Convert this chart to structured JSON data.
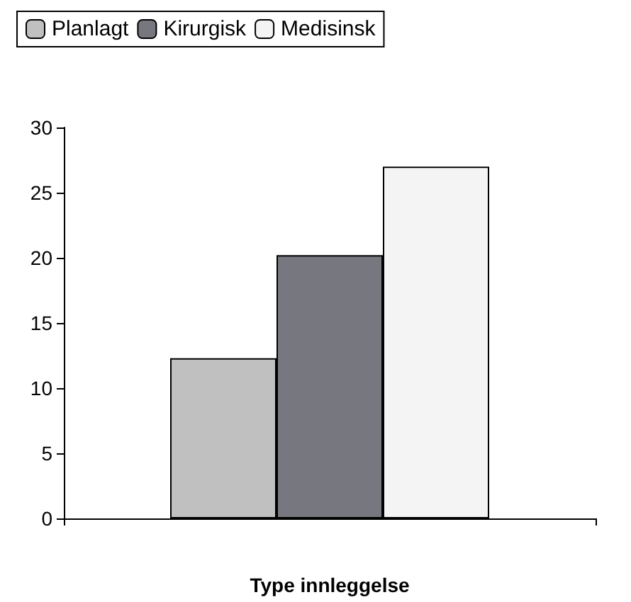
{
  "chart_data": {
    "type": "bar",
    "xlabel": "Type innleggelse",
    "categories": [
      null
    ],
    "series": [
      {
        "name": "Planlagt",
        "color": "#c0c0c0",
        "values": [
          12.3
        ]
      },
      {
        "name": "Kirurgisk",
        "color": "#77777f",
        "values": [
          20.2
        ]
      },
      {
        "name": "Medisinsk",
        "color": "#f4f4f4",
        "values": [
          27
        ]
      }
    ],
    "ylim": [
      0,
      30
    ],
    "yticks": [
      0,
      5,
      10,
      15,
      20,
      25,
      30
    ],
    "grid": false,
    "legend": "top left"
  }
}
